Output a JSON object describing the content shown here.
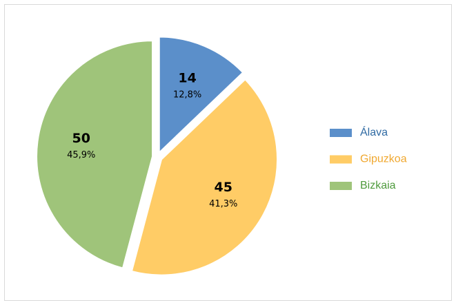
{
  "chart_data": {
    "type": "pie",
    "categories": [
      "Álava",
      "Gipuzkoa",
      "Bizkaia"
    ],
    "values": [
      14,
      45,
      50
    ],
    "percent_labels": [
      "12,8%",
      "41,3%",
      "45,9%"
    ],
    "colors": [
      "#5b8fca",
      "#ffcc66",
      "#9fc47a"
    ],
    "legend_text_colors": [
      "#2f6aa3",
      "#f0a830",
      "#4e9a3c"
    ],
    "legend": "right"
  }
}
